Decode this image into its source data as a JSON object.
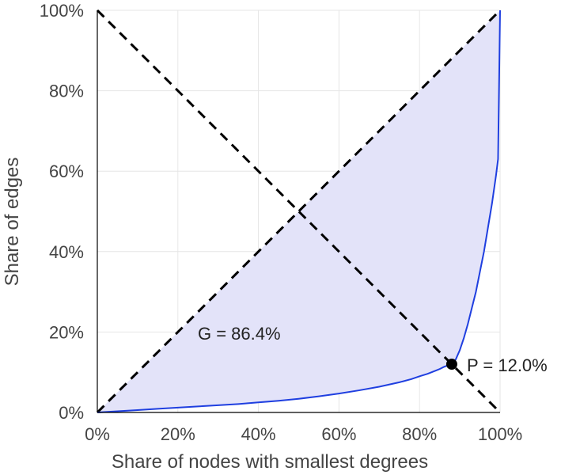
{
  "chart_data": {
    "type": "line",
    "title": "",
    "xlabel": "Share of nodes with smallest degrees",
    "ylabel": "Share of edges",
    "xlim": [
      0,
      100
    ],
    "ylim": [
      0,
      100
    ],
    "x_ticks": [
      "0%",
      "20%",
      "40%",
      "60%",
      "80%",
      "100%"
    ],
    "y_ticks": [
      "0%",
      "20%",
      "40%",
      "60%",
      "80%",
      "100%"
    ],
    "grid": true,
    "colors": {
      "curve": "#1f3fe0",
      "fill": "#e3e3f9",
      "reference": "#000000",
      "grid": "#e6e6e6"
    },
    "series": [
      {
        "x": [
          0,
          5,
          10,
          15,
          20,
          25,
          30,
          35,
          40,
          45,
          50,
          55,
          60,
          65,
          70,
          75,
          78,
          80,
          82,
          84,
          85,
          86,
          87,
          88,
          89,
          90,
          91,
          92,
          93,
          94,
          95,
          96,
          97,
          98,
          99,
          99.5,
          100
        ],
        "y": [
          0,
          0.3,
          0.6,
          0.9,
          1.2,
          1.5,
          1.8,
          2.1,
          2.5,
          2.9,
          3.4,
          4.0,
          4.7,
          5.5,
          6.4,
          7.5,
          8.3,
          9.0,
          9.6,
          10.4,
          10.8,
          11.3,
          11.7,
          12.0,
          13.2,
          15.5,
          18.5,
          22,
          26,
          30,
          35,
          40,
          46,
          52,
          59,
          63,
          100
        ]
      }
    ],
    "reference_lines": [
      {
        "x": [
          0,
          100
        ],
        "y": [
          0,
          100
        ]
      },
      {
        "x": [
          0,
          100
        ],
        "y": [
          100,
          0
        ]
      }
    ],
    "point": {
      "x": 88,
      "y": 12
    },
    "annotations": [
      "G = 86.4%",
      "P = 12.0%"
    ]
  }
}
